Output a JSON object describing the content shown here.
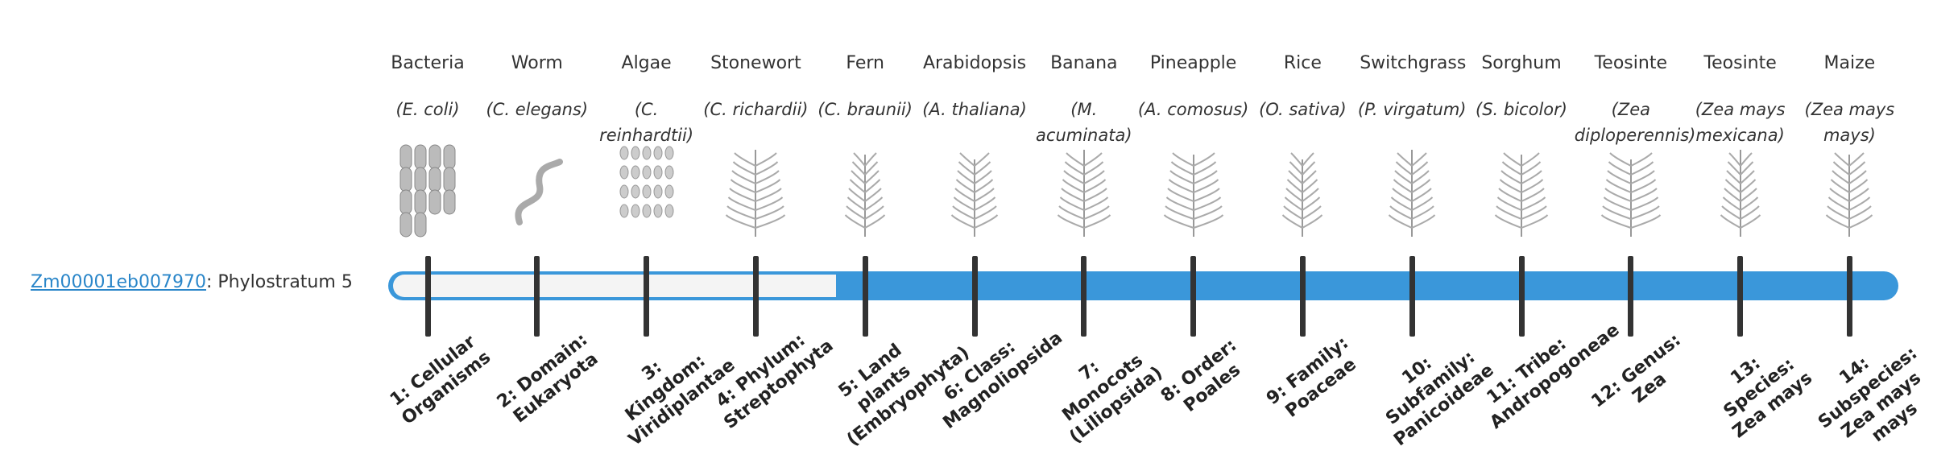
{
  "gene": {
    "id": "Zm00001eb007970",
    "label": ": Phylostratum",
    "stratum": 5
  },
  "organisms": [
    {
      "name": "Bacteria",
      "species": "(E. coli)"
    },
    {
      "name": "Worm",
      "species": "(C. elegans)"
    },
    {
      "name": "Algae",
      "species": "(C. reinhardtii)"
    },
    {
      "name": "Stonewort",
      "species": "(C. richardii)"
    },
    {
      "name": "Fern",
      "species": "(C. braunii)"
    },
    {
      "name": "Arabidopsis",
      "species": "(A. thaliana)"
    },
    {
      "name": "Banana",
      "species": "(M. acuminata)"
    },
    {
      "name": "Pineapple",
      "species": "(A. comosus)"
    },
    {
      "name": "Rice",
      "species": "(O. sativa)"
    },
    {
      "name": "Switchgrass",
      "species": "(P. virgatum)"
    },
    {
      "name": "Sorghum",
      "species": "(S. bicolor)"
    },
    {
      "name": "Teosinte",
      "species": "(Zea diploperennis)"
    },
    {
      "name": "Teosinte",
      "species": "(Zea mays mexicana)"
    },
    {
      "name": "Maize",
      "species": "(Zea mays mays)"
    }
  ],
  "strata": [
    "1: Cellular Organisms",
    "2: Domain: Eukaryota",
    "3: Kingdom: Viridiplantae",
    "4: Phylum: Streptophyta",
    "5: Land plants (Embryophyta)",
    "6: Class: Magnoliopsida",
    "7: Monocots (Liliopsida)",
    "8: Order: Poales",
    "9: Family: Poaceae",
    "10: Subfamily: Panicoideae",
    "11: Tribe: Andropogoneae",
    "12: Genus: Zea",
    "13: Species: Zea mays",
    "14: Subspecies: Zea mays mays"
  ]
}
